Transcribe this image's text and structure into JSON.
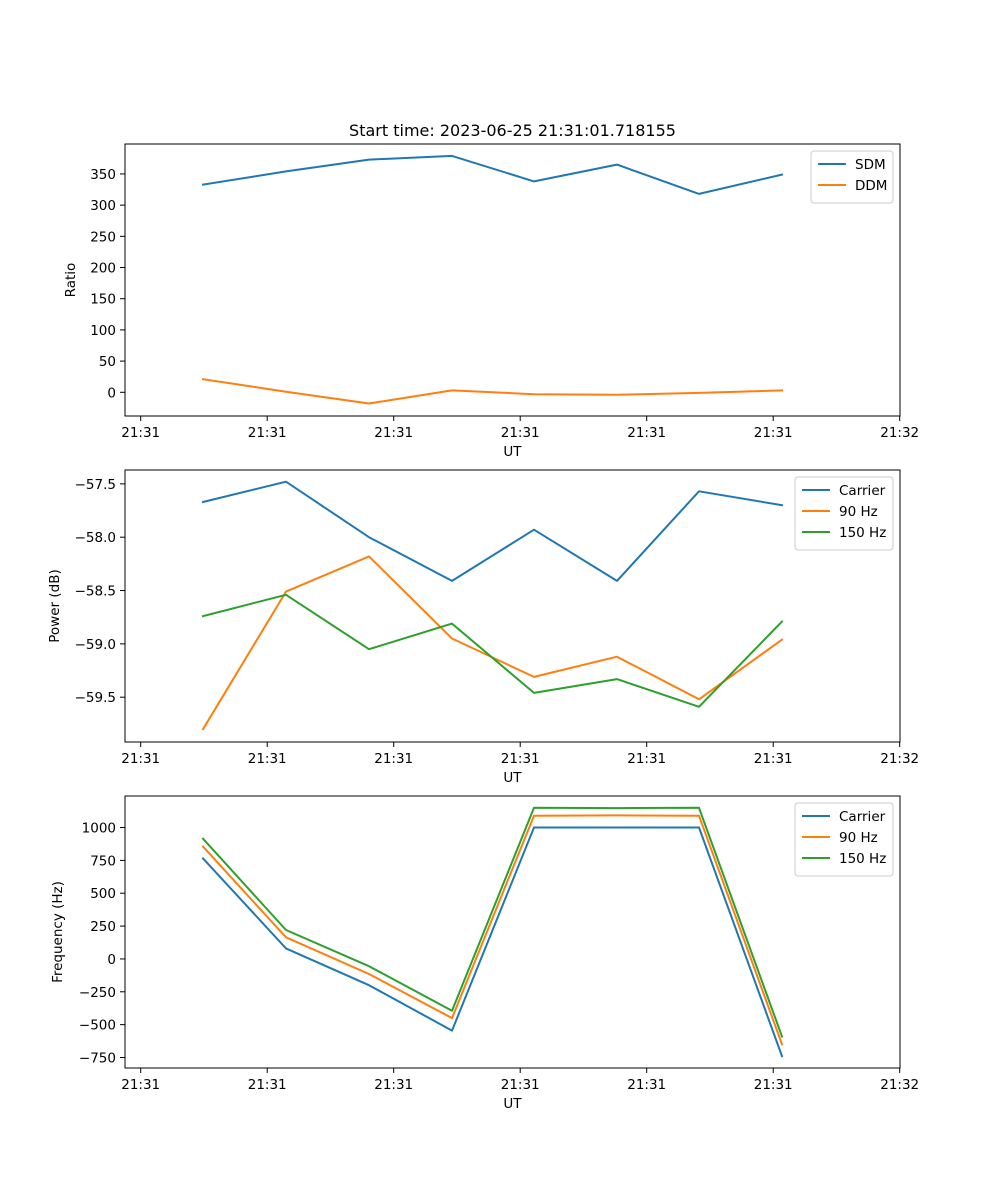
{
  "figure": {
    "title": "Start time: 2023-06-25 21:31:01.718155"
  },
  "chart_data": [
    {
      "type": "line",
      "title": "Start time: 2023-06-25 21:31:01.718155",
      "xlabel": "UT",
      "ylabel": "Ratio",
      "x_tick_labels": [
        "21:31",
        "21:31",
        "21:31",
        "21:31",
        "21:31",
        "21:31",
        "21:32"
      ],
      "y_ticks": [
        0,
        50,
        100,
        150,
        200,
        250,
        300,
        350
      ],
      "ylim": [
        -38,
        398
      ],
      "grid": false,
      "legend_position": "top-right",
      "series": [
        {
          "name": "SDM",
          "color": "#1f77b4",
          "values": [
            333,
            354,
            373,
            379,
            338,
            365,
            318,
            349
          ]
        },
        {
          "name": "DDM",
          "color": "#ff7f0e",
          "values": [
            21,
            1,
            -18,
            3,
            -3,
            -4,
            -1,
            3
          ]
        }
      ]
    },
    {
      "type": "line",
      "title": "",
      "xlabel": "UT",
      "ylabel": "Power (dB)",
      "x_tick_labels": [
        "21:31",
        "21:31",
        "21:31",
        "21:31",
        "21:31",
        "21:31",
        "21:32"
      ],
      "y_ticks": [
        -59.5,
        -59.0,
        -58.5,
        -58.0,
        -57.5
      ],
      "y_tick_labels": [
        "−59.5",
        "−59.0",
        "−58.5",
        "−58.0",
        "−57.5"
      ],
      "ylim": [
        -59.92,
        -57.37
      ],
      "grid": false,
      "legend_position": "top-right",
      "series": [
        {
          "name": "Carrier",
          "color": "#1f77b4",
          "values": [
            -57.67,
            -57.48,
            -58.0,
            -58.41,
            -57.93,
            -58.41,
            -57.57,
            -57.7
          ]
        },
        {
          "name": "90 Hz",
          "color": "#ff7f0e",
          "values": [
            -59.8,
            -58.51,
            -58.18,
            -58.95,
            -59.31,
            -59.12,
            -59.52,
            -58.96
          ]
        },
        {
          "name": "150 Hz",
          "color": "#2ca02c",
          "values": [
            -58.74,
            -58.54,
            -59.05,
            -58.81,
            -59.46,
            -59.33,
            -59.59,
            -58.79
          ]
        }
      ]
    },
    {
      "type": "line",
      "title": "",
      "xlabel": "UT",
      "ylabel": "Frequency (Hz)",
      "x_tick_labels": [
        "21:31",
        "21:31",
        "21:31",
        "21:31",
        "21:31",
        "21:31",
        "21:32"
      ],
      "y_ticks": [
        -750,
        -500,
        -250,
        0,
        250,
        500,
        750,
        1000
      ],
      "y_tick_labels": [
        "−750",
        "−500",
        "−250",
        "0",
        "250",
        "500",
        "750",
        "1000"
      ],
      "ylim": [
        -830,
        1240
      ],
      "grid": false,
      "legend_position": "top-right",
      "series": [
        {
          "name": "Carrier",
          "color": "#1f77b4",
          "values": [
            765,
            80,
            -200,
            -545,
            1000,
            1000,
            1000,
            -740
          ]
        },
        {
          "name": "90 Hz",
          "color": "#ff7f0e",
          "values": [
            855,
            165,
            -115,
            -450,
            1090,
            1092,
            1090,
            -650
          ]
        },
        {
          "name": "150 Hz",
          "color": "#2ca02c",
          "values": [
            915,
            220,
            -55,
            -395,
            1150,
            1148,
            1150,
            -590
          ]
        }
      ]
    }
  ]
}
